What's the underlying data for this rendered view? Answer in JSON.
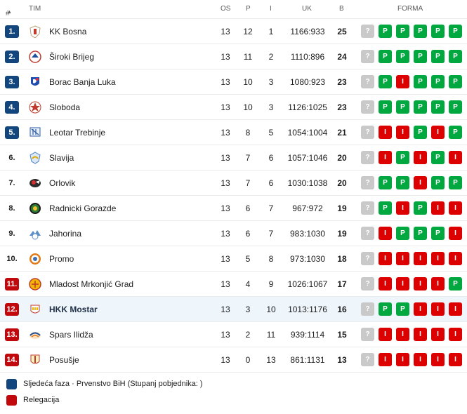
{
  "header": {
    "rank": "#",
    "team": "TIM",
    "played": "OS",
    "wins": "P",
    "losses": "I",
    "points_diff": "UK",
    "points": "B",
    "form": "FORMA"
  },
  "colors": {
    "promotion": "#12467d",
    "relegation": "#c1080c",
    "win": "#00a83f",
    "loss": "#dc0000",
    "unknown": "#c9c9c9",
    "highlight_row": "#eef5fb"
  },
  "rows": [
    {
      "rank": "1.",
      "zone": "promo",
      "team": "KK Bosna",
      "logo": "kk-bosna-crest",
      "os": "13",
      "p": "12",
      "i": "1",
      "uk": "1166:933",
      "b": "25",
      "form": [
        "?",
        "P",
        "P",
        "P",
        "P",
        "P"
      ]
    },
    {
      "rank": "2.",
      "zone": "promo",
      "team": "Široki Brijeg",
      "logo": "siroki-brijeg-crest",
      "os": "13",
      "p": "11",
      "i": "2",
      "uk": "1110:896",
      "b": "24",
      "form": [
        "?",
        "P",
        "P",
        "P",
        "P",
        "P"
      ]
    },
    {
      "rank": "3.",
      "zone": "promo",
      "team": "Borac Banja Luka",
      "logo": "borac-crest",
      "os": "13",
      "p": "10",
      "i": "3",
      "uk": "1080:923",
      "b": "23",
      "form": [
        "?",
        "P",
        "I",
        "P",
        "P",
        "P"
      ]
    },
    {
      "rank": "4.",
      "zone": "promo",
      "team": "Sloboda",
      "logo": "sloboda-crest",
      "os": "13",
      "p": "10",
      "i": "3",
      "uk": "1126:1025",
      "b": "23",
      "form": [
        "?",
        "P",
        "P",
        "P",
        "P",
        "P"
      ]
    },
    {
      "rank": "5.",
      "zone": "promo",
      "team": "Leotar Trebinje",
      "logo": "leotar-crest",
      "os": "13",
      "p": "8",
      "i": "5",
      "uk": "1054:1004",
      "b": "21",
      "form": [
        "?",
        "I",
        "I",
        "P",
        "I",
        "P"
      ]
    },
    {
      "rank": "6.",
      "zone": "",
      "team": "Slavija",
      "logo": "slavija-crest",
      "os": "13",
      "p": "7",
      "i": "6",
      "uk": "1057:1046",
      "b": "20",
      "form": [
        "?",
        "I",
        "P",
        "I",
        "P",
        "I"
      ]
    },
    {
      "rank": "7.",
      "zone": "",
      "team": "Orlovik",
      "logo": "orlovik-crest",
      "os": "13",
      "p": "7",
      "i": "6",
      "uk": "1030:1038",
      "b": "20",
      "form": [
        "?",
        "P",
        "P",
        "I",
        "P",
        "P"
      ]
    },
    {
      "rank": "8.",
      "zone": "",
      "team": "Radnicki Gorazde",
      "logo": "radnicki-crest",
      "os": "13",
      "p": "6",
      "i": "7",
      "uk": "967:972",
      "b": "19",
      "form": [
        "?",
        "P",
        "I",
        "P",
        "I",
        "I"
      ]
    },
    {
      "rank": "9.",
      "zone": "",
      "team": "Jahorina",
      "logo": "jahorina-crest",
      "os": "13",
      "p": "6",
      "i": "7",
      "uk": "983:1030",
      "b": "19",
      "form": [
        "?",
        "I",
        "P",
        "P",
        "P",
        "I"
      ]
    },
    {
      "rank": "10.",
      "zone": "",
      "team": "Promo",
      "logo": "promo-crest",
      "os": "13",
      "p": "5",
      "i": "8",
      "uk": "973:1030",
      "b": "18",
      "form": [
        "?",
        "I",
        "I",
        "I",
        "I",
        "I"
      ]
    },
    {
      "rank": "11.",
      "zone": "releg",
      "team": "Mladost Mrkonjić Grad",
      "logo": "mladost-crest",
      "os": "13",
      "p": "4",
      "i": "9",
      "uk": "1026:1067",
      "b": "17",
      "form": [
        "?",
        "I",
        "I",
        "I",
        "I",
        "P"
      ]
    },
    {
      "rank": "12.",
      "zone": "releg",
      "team": "HKK Mostar",
      "logo": "hkk-mostar-crest",
      "highlight": true,
      "os": "13",
      "p": "3",
      "i": "10",
      "uk": "1013:1176",
      "b": "16",
      "form": [
        "?",
        "P",
        "P",
        "I",
        "I",
        "I"
      ]
    },
    {
      "rank": "13.",
      "zone": "releg",
      "team": "Spars Ilidža",
      "logo": "spars-crest",
      "os": "13",
      "p": "2",
      "i": "11",
      "uk": "939:1114",
      "b": "15",
      "form": [
        "?",
        "I",
        "I",
        "I",
        "I",
        "I"
      ]
    },
    {
      "rank": "14.",
      "zone": "releg",
      "team": "Posušje",
      "logo": "posusje-crest",
      "os": "13",
      "p": "0",
      "i": "13",
      "uk": "861:1131",
      "b": "13",
      "form": [
        "?",
        "I",
        "I",
        "I",
        "I",
        "I"
      ]
    }
  ],
  "legend": [
    {
      "zone": "promo",
      "label": "Sljedeća faza · Prvenstvo BiH (Stupanj pobjednika: )"
    },
    {
      "zone": "releg",
      "label": "Relegacija"
    }
  ]
}
